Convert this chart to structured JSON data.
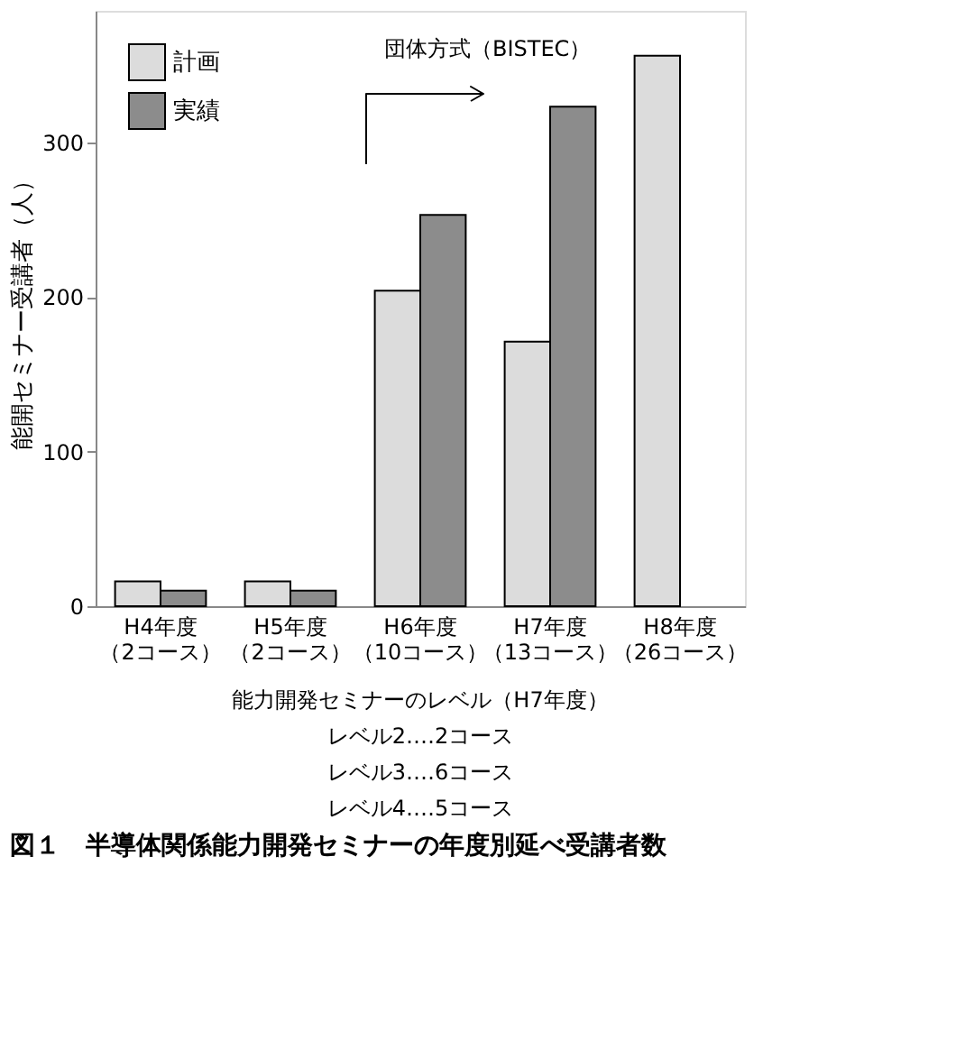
{
  "chart_data": {
    "type": "bar",
    "title": "図１　半導体関係能力開発セミナーの年度別延べ受講者数",
    "ylabel": "能開セミナー受講者（人）",
    "categories": [
      "H4年度（2コース）",
      "H5年度（2コース）",
      "H6年度（10コース）",
      "H7年度（13コース）",
      "H8年度（26コース）"
    ],
    "series": [
      {
        "name": "計画",
        "color": "#dcdcdc",
        "values": [
          16,
          16,
          204,
          171,
          356
        ]
      },
      {
        "name": "実績",
        "color": "#8c8c8c",
        "values": [
          10,
          10,
          253,
          323,
          null
        ]
      }
    ],
    "ylim": [
      0,
      385
    ],
    "yticks": [
      0,
      100,
      200,
      300
    ],
    "grid": false,
    "legend": "top left",
    "annotations": [
      "団体方式（BISTEC）",
      "能力開発セミナーのレベル（H7年度）",
      "レベル2‥‥2コース",
      "レベル3‥‥6コース",
      "レベル4‥‥5コース"
    ]
  }
}
